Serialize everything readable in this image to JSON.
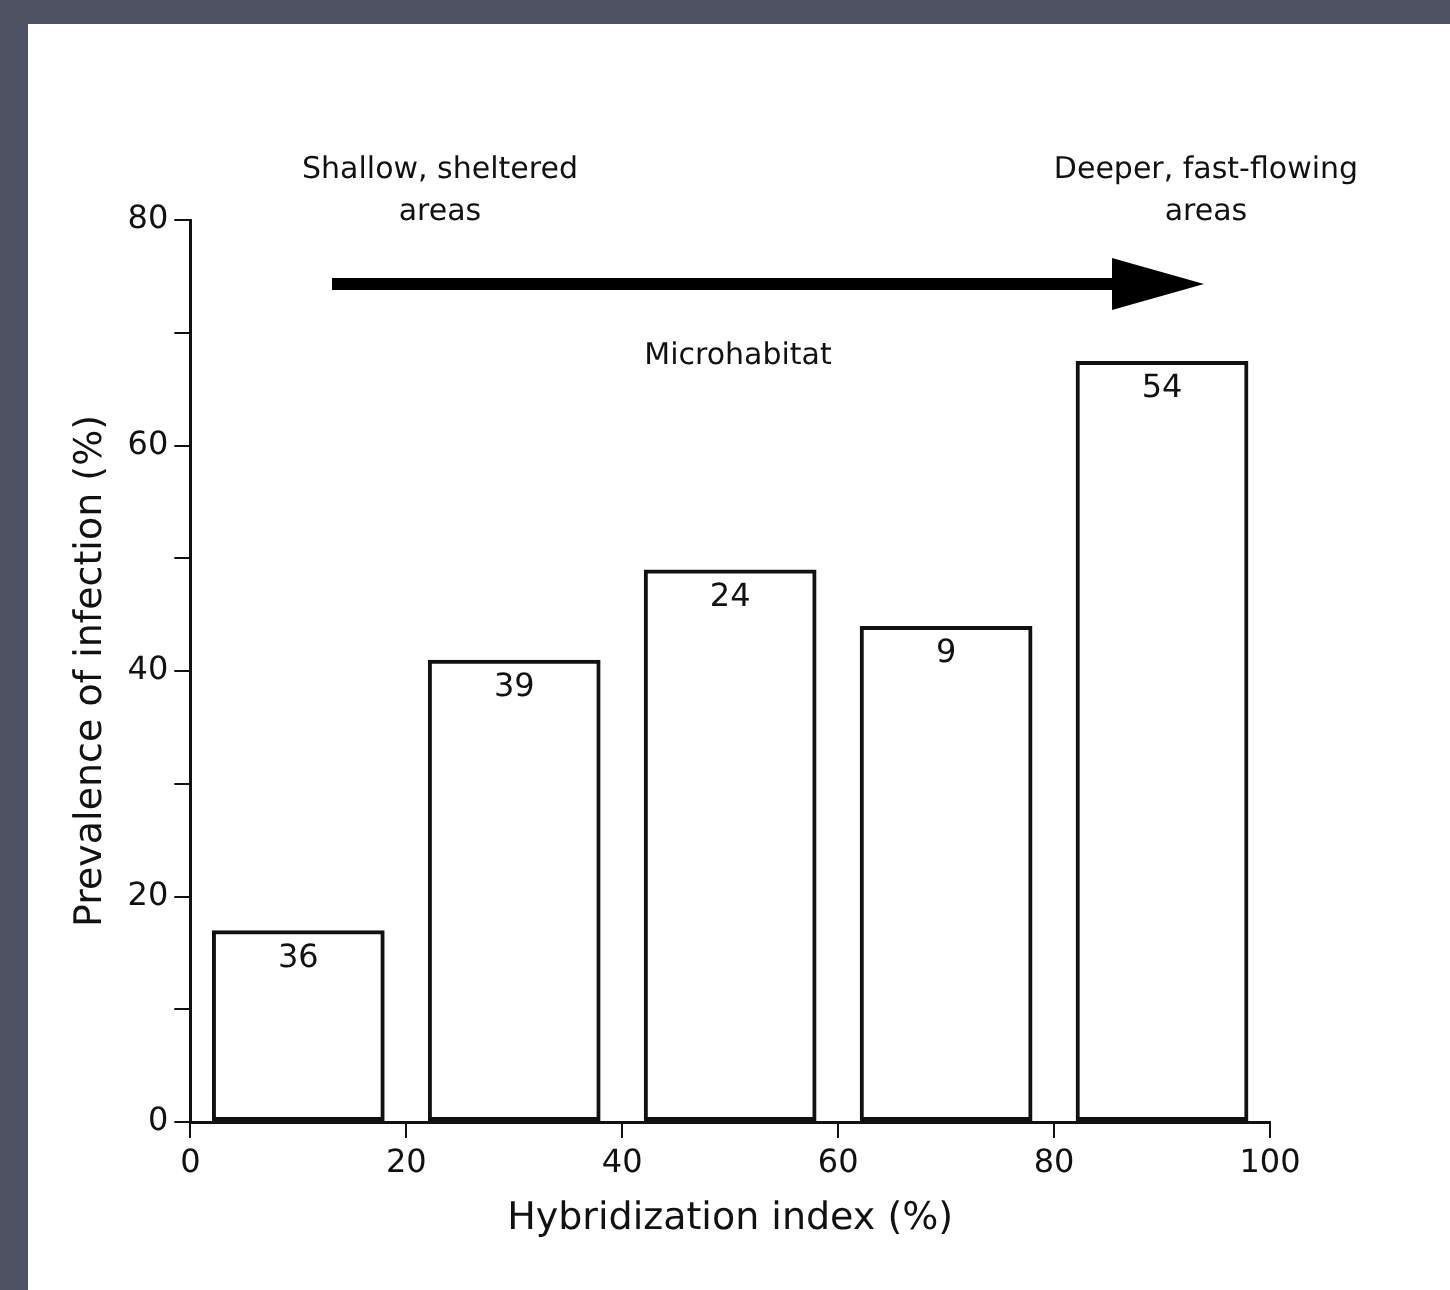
{
  "chart_data": {
    "type": "bar",
    "xlabel": "Hybridization index (%)",
    "ylabel": "Prevalence of infection (%)",
    "x": [
      10,
      30,
      50,
      70,
      90
    ],
    "values": [
      17,
      41,
      49,
      44,
      67.5
    ],
    "color": "#111111",
    "xlim": [
      0,
      100
    ],
    "xticks": [
      0,
      20,
      40,
      60,
      80,
      100
    ],
    "ylim": [
      0,
      80
    ],
    "yticks": [
      0,
      {
        "value": 10,
        "label": null
      },
      20,
      {
        "value": 30,
        "label": null
      },
      40,
      {
        "value": 50,
        "label": null
      },
      60,
      {
        "value": 70,
        "label": null
      },
      80
    ],
    "grid": false,
    "legend": false,
    "annotations": [
      "Shallow, sheltered areas",
      "Deeper, fast-flowing areas",
      "Microhabitat",
      {
        "text": "36",
        "x": 10,
        "y": 17
      },
      {
        "text": "39",
        "x": 30,
        "y": 41
      },
      {
        "text": "24",
        "x": 50,
        "y": 49
      },
      {
        "text": "9",
        "x": 70,
        "y": 44
      },
      {
        "text": "54",
        "x": 90,
        "y": 67.5
      }
    ]
  }
}
